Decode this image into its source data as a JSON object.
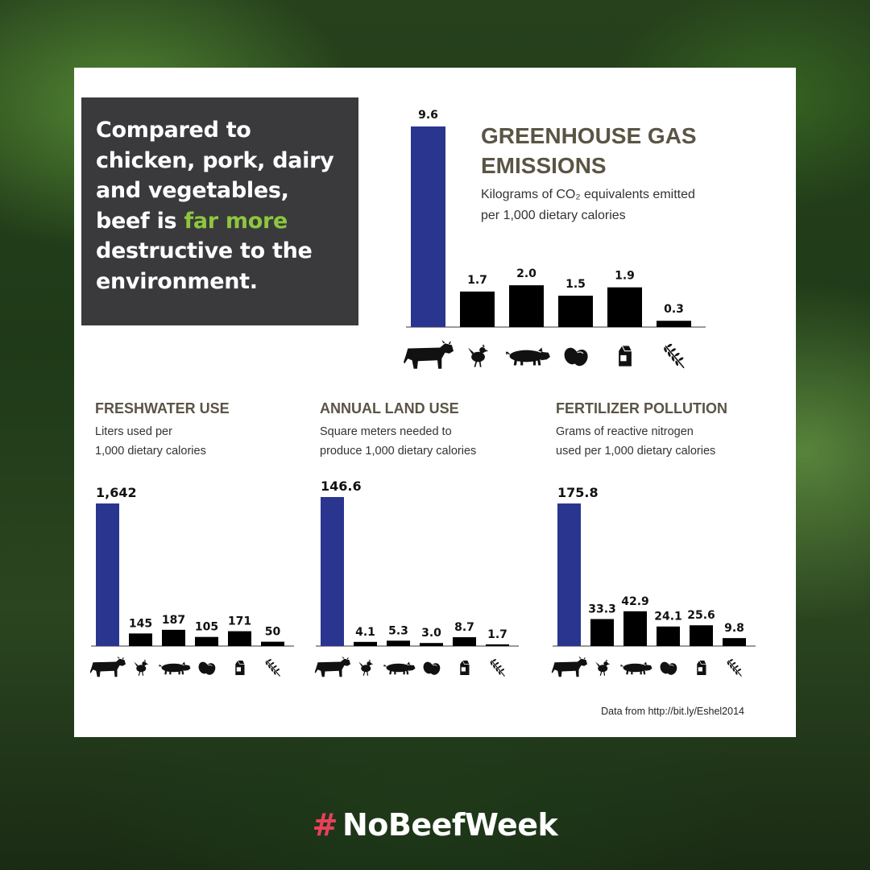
{
  "headline": {
    "part1": "Compared to chicken, pork, dairy and vegetables, beef is ",
    "highlight": "far more",
    "part2": " destructive to the environment."
  },
  "hashtag": {
    "symbol": "#",
    "text": "NoBeefWeek"
  },
  "source_note": "Data from http://bit.ly/Eshel2014",
  "colors": {
    "beef_bar": "#2a3590",
    "other_bars": "#000000",
    "highlight": "#8dc63f",
    "hashtag": "#e8405b",
    "title": "#5a5445"
  },
  "icons": [
    "cow-icon",
    "chicken-icon",
    "pig-icon",
    "eggs-icon",
    "milk-carton-icon",
    "wheat-icon"
  ],
  "chart_data": [
    {
      "id": "ghg",
      "type": "bar",
      "title": "GREENHOUSE GAS EMISSIONS",
      "subtitle_line1": "Kilograms of CO₂ equivalents emitted",
      "subtitle_line2": "per 1,000 dietary calories",
      "categories": [
        "cow-icon",
        "chicken-icon",
        "pig-icon",
        "eggs-icon",
        "milk-carton-icon",
        "wheat-icon"
      ],
      "values": [
        9.6,
        1.7,
        2.0,
        1.5,
        1.9,
        0.3
      ],
      "labels": [
        "9.6",
        "1.7",
        "2.0",
        "1.5",
        "1.9",
        "0.3"
      ],
      "ylim": [
        0,
        9.6
      ]
    },
    {
      "id": "water",
      "type": "bar",
      "title": "FRESHWATER USE",
      "subtitle_line1": "Liters used per",
      "subtitle_line2": "1,000 dietary calories",
      "categories": [
        "cow-icon",
        "chicken-icon",
        "pig-icon",
        "eggs-icon",
        "milk-carton-icon",
        "wheat-icon"
      ],
      "values": [
        1642,
        145,
        187,
        105,
        171,
        50
      ],
      "labels": [
        "1,642",
        "145",
        "187",
        "105",
        "171",
        "50"
      ],
      "ylim": [
        0,
        1642
      ]
    },
    {
      "id": "land",
      "type": "bar",
      "title": "ANNUAL LAND USE",
      "subtitle_line1": "Square meters needed to",
      "subtitle_line2": "produce 1,000 dietary calories",
      "categories": [
        "cow-icon",
        "chicken-icon",
        "pig-icon",
        "eggs-icon",
        "milk-carton-icon",
        "wheat-icon"
      ],
      "values": [
        146.6,
        4.1,
        5.3,
        3.0,
        8.7,
        1.7
      ],
      "labels": [
        "146.6",
        "4.1",
        "5.3",
        "3.0",
        "8.7",
        "1.7"
      ],
      "ylim": [
        0,
        146.6
      ]
    },
    {
      "id": "fert",
      "type": "bar",
      "title": "FERTILIZER POLLUTION",
      "subtitle_line1": "Grams of reactive nitrogen",
      "subtitle_line2": "used per 1,000 dietary calories",
      "categories": [
        "cow-icon",
        "chicken-icon",
        "pig-icon",
        "eggs-icon",
        "milk-carton-icon",
        "wheat-icon"
      ],
      "values": [
        175.8,
        33.3,
        42.9,
        24.1,
        25.6,
        9.8
      ],
      "labels": [
        "175.8",
        "33.3",
        "42.9",
        "24.1",
        "25.6",
        "9.8"
      ],
      "ylim": [
        0,
        175.8
      ]
    }
  ]
}
